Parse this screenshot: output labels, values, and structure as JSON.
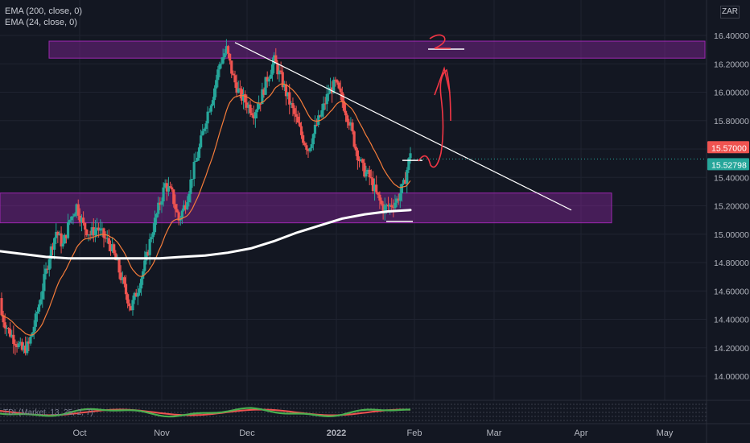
{
  "legend": {
    "ema200": "EMA (200, close, 0)",
    "ema24": "EMA (24, close, 0)"
  },
  "currency": "ZAR",
  "indicator_label": "TDI (Market, 13, 25, 2, 7)",
  "colors": {
    "background": "#131722",
    "up": "#26a69a",
    "down": "#ef5350",
    "ema200": "#ffffff",
    "ema24": "#f57c3a",
    "zone": "#9c27b0",
    "trendline": "#ffffff",
    "drawing": "#f23645",
    "last_price_bg": "#ef5350",
    "ema_label_bg": "#26a69a"
  },
  "chart_data": {
    "type": "candlestick",
    "instrument_currency": "ZAR",
    "x_ticks": [
      "Oct",
      "Nov",
      "Dec",
      "2022",
      "Feb",
      "Mar",
      "Apr",
      "May"
    ],
    "y_ticks": [
      "14.00000",
      "14.20000",
      "14.40000",
      "14.60000",
      "14.80000",
      "15.00000",
      "15.20000",
      "15.40000",
      "15.60000",
      "15.80000",
      "16.00000",
      "16.20000",
      "16.40000"
    ],
    "ylim": [
      13.85,
      16.6
    ],
    "price_labels": {
      "last": "15.57000",
      "ema": "15.52798"
    },
    "candles_close_path": [
      14.43,
      14.32,
      14.25,
      14.18,
      14.22,
      14.4,
      14.62,
      14.85,
      15.02,
      14.92,
      15.1,
      15.2,
      15.06,
      15.0,
      15.05,
      14.98,
      14.92,
      14.78,
      14.62,
      14.48,
      14.62,
      14.78,
      15.0,
      15.18,
      15.35,
      15.28,
      15.1,
      15.22,
      15.42,
      15.6,
      15.82,
      15.98,
      16.2,
      16.3,
      16.1,
      15.98,
      15.92,
      15.86,
      15.95,
      16.1,
      16.22,
      16.1,
      15.96,
      15.84,
      15.7,
      15.6,
      15.74,
      15.86,
      16.0,
      16.06,
      15.94,
      15.8,
      15.6,
      15.46,
      15.4,
      15.28,
      15.18,
      15.2,
      15.24,
      15.34,
      15.57
    ],
    "ema200": [
      14.88,
      14.86,
      14.84,
      14.83,
      14.83,
      14.83,
      14.83,
      14.83,
      14.84,
      14.85,
      14.87,
      14.9,
      14.95,
      15.01,
      15.06,
      15.11,
      15.14,
      15.16,
      15.17
    ],
    "zones": [
      {
        "top": 16.36,
        "bottom": 16.24
      },
      {
        "top": 15.29,
        "bottom": 15.08
      }
    ],
    "trendline": {
      "from": 16.35,
      "to": 15.17
    },
    "annotations": [
      {
        "type": "handwriting",
        "text": "2"
      }
    ]
  }
}
